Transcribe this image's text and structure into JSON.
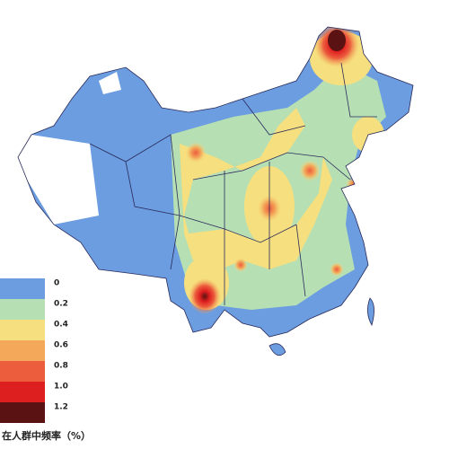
{
  "legend": {
    "title": "在人群中频率（%）",
    "stops": [
      {
        "value": 0,
        "color": "#6b9de0"
      },
      {
        "value": 0.2,
        "color": "#b6dfb4"
      },
      {
        "value": 0.4,
        "color": "#f6df7e"
      },
      {
        "value": 0.6,
        "color": "#f4a95a"
      },
      {
        "value": 0.8,
        "color": "#ec5d3e"
      },
      {
        "value": {
          "value": 1,
          "label": "1.0"
        },
        "color": "#de1f1f"
      },
      {
        "value": 1.2,
        "color": "#5a1212"
      }
    ]
  }
}
